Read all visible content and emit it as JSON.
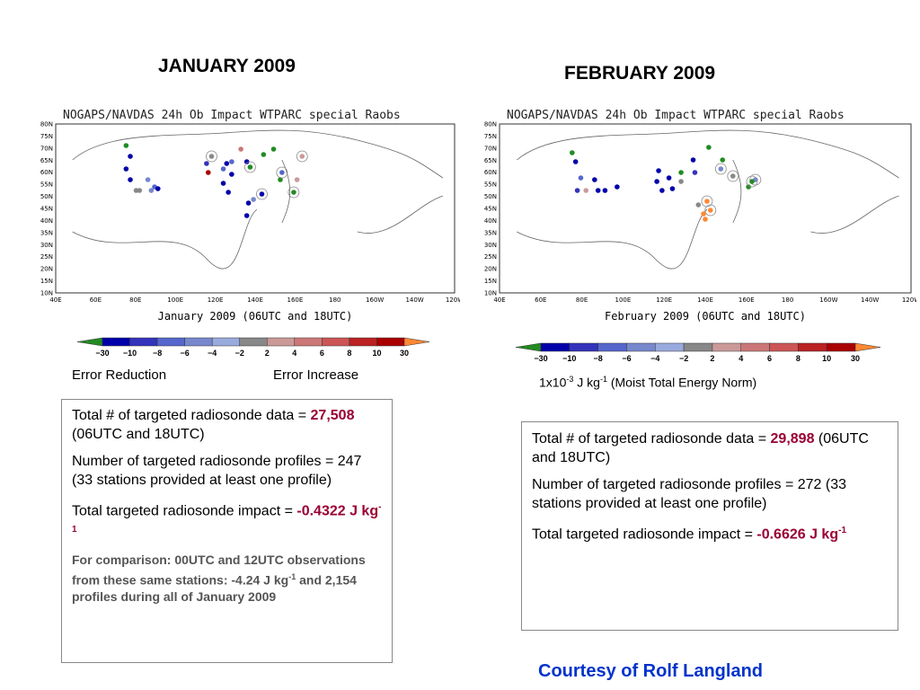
{
  "january": {
    "heading": "JANUARY 2009",
    "map_title": "NOGAPS/NAVDAS 24h Ob Impact WTPARC special Raobs",
    "map_caption": "January 2009 (06UTC and 18UTC)",
    "lat_ticks": [
      "80N",
      "75N",
      "70N",
      "65N",
      "60N",
      "55N",
      "50N",
      "45N",
      "40N",
      "35N",
      "30N",
      "25N",
      "20N",
      "15N",
      "10N"
    ],
    "lon_ticks": [
      "40E",
      "60E",
      "80E",
      "100E",
      "120E",
      "140E",
      "160E",
      "180",
      "160W",
      "140W",
      "120W"
    ],
    "colorbar_ticks": [
      "-30",
      "-10",
      "-8",
      "-6",
      "-4",
      "-2",
      "2",
      "4",
      "6",
      "8",
      "10",
      "30"
    ],
    "error_reduction_label": "Error Reduction",
    "error_increase_label": "Error Increase",
    "stats": {
      "line1_prefix": "Total # of targeted radiosonde data = ",
      "line1_value": "27,508",
      "line1_suffix": " (06UTC and 18UTC)",
      "line2": "Number of targeted radiosonde profiles = 247  (33 stations provided at least one profile)",
      "line3_prefix": "Total targeted radiosonde impact = ",
      "line3_value": "-0.4322 J kg",
      "line3_sup": "-1",
      "comparison_a": "For comparison: 00UTC and 12UTC observations from these same stations: -4.24 J kg",
      "comparison_sup": "-1",
      "comparison_b": "  and 2,154 profiles during all of January 2009"
    }
  },
  "february": {
    "heading": "FEBRUARY 2009",
    "map_title": "NOGAPS/NAVDAS 24h Ob Impact WTPARC special Raobs",
    "map_caption": "February 2009 (06UTC and 18UTC)",
    "lat_ticks": [
      "80N",
      "75N",
      "70N",
      "65N",
      "60N",
      "55N",
      "50N",
      "45N",
      "40N",
      "35N",
      "30N",
      "25N",
      "20N",
      "15N",
      "10N"
    ],
    "lon_ticks": [
      "40E",
      "60E",
      "80E",
      "100E",
      "120E",
      "140E",
      "160E",
      "180",
      "160W",
      "140W",
      "120W"
    ],
    "colorbar_ticks": [
      "-30",
      "-10",
      "-8",
      "-6",
      "-4",
      "-2",
      "2",
      "4",
      "6",
      "8",
      "10",
      "30"
    ],
    "units_prefix": "1x10",
    "units_exp1": "-3",
    "units_mid": " J kg",
    "units_exp2": "-1",
    "units_suffix": "  (Moist Total Energy Norm)",
    "stats": {
      "line1_prefix": "Total # of targeted radiosonde data = ",
      "line1_value": "29,898",
      "line1_suffix": " (06UTC and 18UTC)",
      "line2": "Number of targeted radiosonde profiles = 272  (33 stations provided at least one profile)",
      "line3_prefix": "Total targeted radiosonde impact = ",
      "line3_value": "-0.6626 J kg",
      "line3_sup": "-1"
    }
  },
  "colorbar_colors": [
    "#228B22",
    "#0000aa",
    "#3333bb",
    "#5566cc",
    "#7788cc",
    "#99aadd",
    "#888888",
    "#cc9999",
    "#cc7777",
    "#cc5555",
    "#bb2222",
    "#aa0000",
    "#ff8833"
  ],
  "courtesy": "Courtesy of Rolf Langland"
}
